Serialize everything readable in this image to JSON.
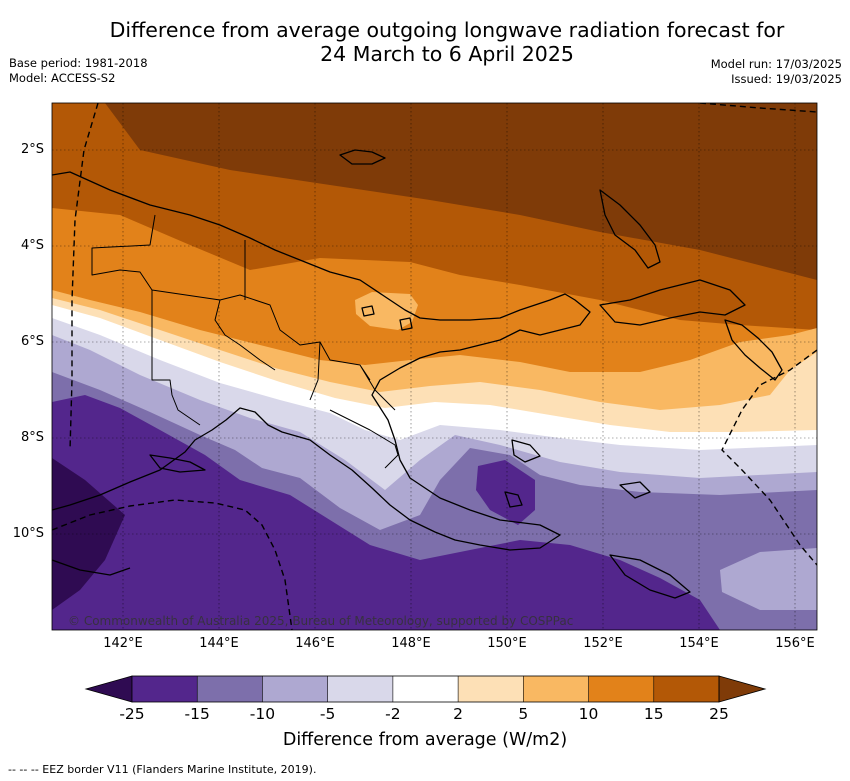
{
  "title": {
    "line1": "Difference from average outgoing longwave radiation forecast for",
    "line2": "24 March to 6 April 2025"
  },
  "meta_left": {
    "base_period": "Base period: 1981-2018",
    "model": "Model: ACCESS-S2"
  },
  "meta_right": {
    "model_run": "Model run: 17/03/2025",
    "issued": "Issued: 19/03/2025"
  },
  "latitude_ticks": [
    "2°S",
    "4°S",
    "6°S",
    "8°S",
    "10°S"
  ],
  "longitude_ticks": [
    "142°E",
    "144°E",
    "146°E",
    "148°E",
    "150°E",
    "152°E",
    "154°E",
    "156°E"
  ],
  "copyright": "© Commonwealth of Australia 2025, Bureau of Meteorology, supported by COSPPac",
  "colorbar": {
    "labels": [
      "-25",
      "-15",
      "-10",
      "-5",
      "-2",
      "2",
      "5",
      "10",
      "15",
      "25"
    ],
    "colors": [
      "#2f0b52",
      "#53268c",
      "#7d6fab",
      "#aea8d1",
      "#d9d8ea",
      "#ffffff",
      "#fde0b6",
      "#f9b862",
      "#e2821a",
      "#b35806",
      "#7f3b08"
    ],
    "title": "Difference from average (W/m2)"
  },
  "footer": "--  --  -- EEZ border V11 (Flanders Marine Institute, 2019)."
}
